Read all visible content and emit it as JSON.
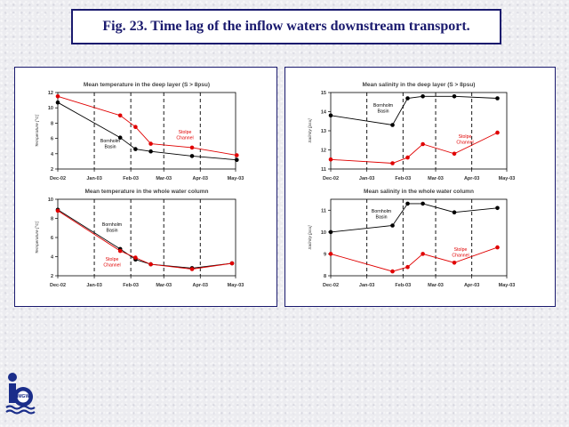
{
  "slide": {
    "title": "Fig. 23. Time lag of the inflow waters downstream transport."
  },
  "logo": {
    "text": "IMGW",
    "icon": "institute-logo-icon"
  },
  "colors": {
    "black_series": "#000000",
    "red_series": "#e00000",
    "title": "#1a1a6e"
  },
  "chart_data": [
    {
      "type": "line",
      "title": "Mean temperature in the deep layer (S > 8psu)",
      "ylabel": "Temperature [°C]",
      "ylim": [
        2,
        12
      ],
      "yticks": [
        "2",
        "4",
        "6",
        "8",
        "10",
        "12"
      ],
      "xticks": [
        "Dec-02",
        "Jan-03",
        "Feb-03",
        "Mar-03",
        "Apr-03",
        "May-03"
      ],
      "vlines": [
        "Jan-03",
        "Feb-03",
        "Mar-03",
        "Apr-03"
      ],
      "series": [
        {
          "name": "Bornholm Basin",
          "color": "#000000",
          "x": [
            "2002-12-01",
            "2003-01-23",
            "2003-02-05",
            "2003-02-18",
            "2003-03-25",
            "2003-05-02"
          ],
          "y": [
            10.7,
            6.1,
            4.6,
            4.3,
            3.7,
            3.2
          ]
        },
        {
          "name": "Stolpe Channel",
          "color": "#e00000",
          "x": [
            "2002-12-01",
            "2003-01-23",
            "2003-02-05",
            "2003-02-18",
            "2003-03-25",
            "2003-05-02"
          ],
          "y": [
            11.5,
            9.0,
            7.5,
            5.3,
            4.8,
            3.8
          ]
        }
      ],
      "labels": [
        {
          "text": "Bornholm Basin",
          "color": "#000000"
        },
        {
          "text": "Stolpe Channel",
          "color": "#e00000"
        }
      ]
    },
    {
      "type": "line",
      "title": "Mean temperature in the whole water column",
      "ylabel": "Temperature [°C]",
      "ylim": [
        2,
        10
      ],
      "yticks": [
        "2",
        "4",
        "6",
        "8",
        "10"
      ],
      "xticks": [
        "Dec-02",
        "Jan-03",
        "Feb-03",
        "Mar-03",
        "Apr-03",
        "May-03"
      ],
      "vlines": [
        "Jan-03",
        "Feb-03",
        "Mar-03",
        "Apr-03"
      ],
      "series": [
        {
          "name": "Bornholm Basin",
          "color": "#000000",
          "x": [
            "2002-12-01",
            "2003-01-23",
            "2003-02-05",
            "2003-02-18",
            "2003-03-25",
            "2003-04-28"
          ],
          "y": [
            8.9,
            4.8,
            3.7,
            3.2,
            2.8,
            3.3
          ]
        },
        {
          "name": "Stolpe Channel",
          "color": "#e00000",
          "x": [
            "2002-12-01",
            "2003-01-23",
            "2003-02-05",
            "2003-02-18",
            "2003-03-25",
            "2003-04-28"
          ],
          "y": [
            8.8,
            4.6,
            3.9,
            3.2,
            2.7,
            3.3
          ]
        }
      ],
      "labels": [
        {
          "text": "Bornholm Basin",
          "color": "#000000"
        },
        {
          "text": "Stolpe Channel",
          "color": "#e00000"
        }
      ]
    },
    {
      "type": "line",
      "title": "Mean salinity in the deep layer (S > 8psu)",
      "ylabel": "Salinity [psu]",
      "ylim": [
        11,
        15
      ],
      "yticks": [
        "11",
        "12",
        "13",
        "14",
        "15"
      ],
      "xticks": [
        "Dec-02",
        "Jan-03",
        "Feb-03",
        "Mar-03",
        "Apr-03",
        "May-03"
      ],
      "vlines": [
        "Jan-03",
        "Feb-03",
        "Mar-03",
        "Apr-03"
      ],
      "series": [
        {
          "name": "Bornholm Basin",
          "color": "#000000",
          "x": [
            "2002-12-01",
            "2003-01-23",
            "2003-02-05",
            "2003-02-18",
            "2003-03-17",
            "2003-04-23"
          ],
          "y": [
            13.8,
            13.3,
            14.7,
            14.8,
            14.8,
            14.7
          ]
        },
        {
          "name": "Stolpe Channel",
          "color": "#e00000",
          "x": [
            "2002-12-01",
            "2003-01-23",
            "2003-02-05",
            "2003-02-18",
            "2003-03-17",
            "2003-04-23"
          ],
          "y": [
            11.5,
            11.3,
            11.6,
            12.3,
            11.8,
            12.9
          ]
        }
      ],
      "labels": [
        {
          "text": "Bornholm Basin",
          "color": "#000000"
        },
        {
          "text": "Stolpe Channel",
          "color": "#e00000"
        }
      ]
    },
    {
      "type": "line",
      "title": "Mean salinity in the whole water column",
      "ylabel": "Salinity [psu]",
      "ylim": [
        8,
        11.5
      ],
      "yticks": [
        "8",
        "9",
        "10",
        "11"
      ],
      "xticks": [
        "Dec-02",
        "Jan-03",
        "Feb-03",
        "Mar-03",
        "Apr-03",
        "May-03"
      ],
      "vlines": [
        "Jan-03",
        "Feb-03",
        "Mar-03",
        "Apr-03"
      ],
      "series": [
        {
          "name": "Bornholm Basin",
          "color": "#000000",
          "x": [
            "2002-12-01",
            "2003-01-23",
            "2003-02-05",
            "2003-02-18",
            "2003-03-17",
            "2003-04-23"
          ],
          "y": [
            10.0,
            10.3,
            11.3,
            11.3,
            10.9,
            11.1
          ]
        },
        {
          "name": "Stolpe Channel",
          "color": "#e00000",
          "x": [
            "2002-12-01",
            "2003-01-23",
            "2003-02-05",
            "2003-02-18",
            "2003-03-17",
            "2003-04-23"
          ],
          "y": [
            9.0,
            8.2,
            8.4,
            9.0,
            8.6,
            9.3
          ]
        }
      ],
      "labels": [
        {
          "text": "Bornholm Basin",
          "color": "#000000"
        },
        {
          "text": "Stolpe Channel",
          "color": "#e00000"
        }
      ]
    }
  ]
}
